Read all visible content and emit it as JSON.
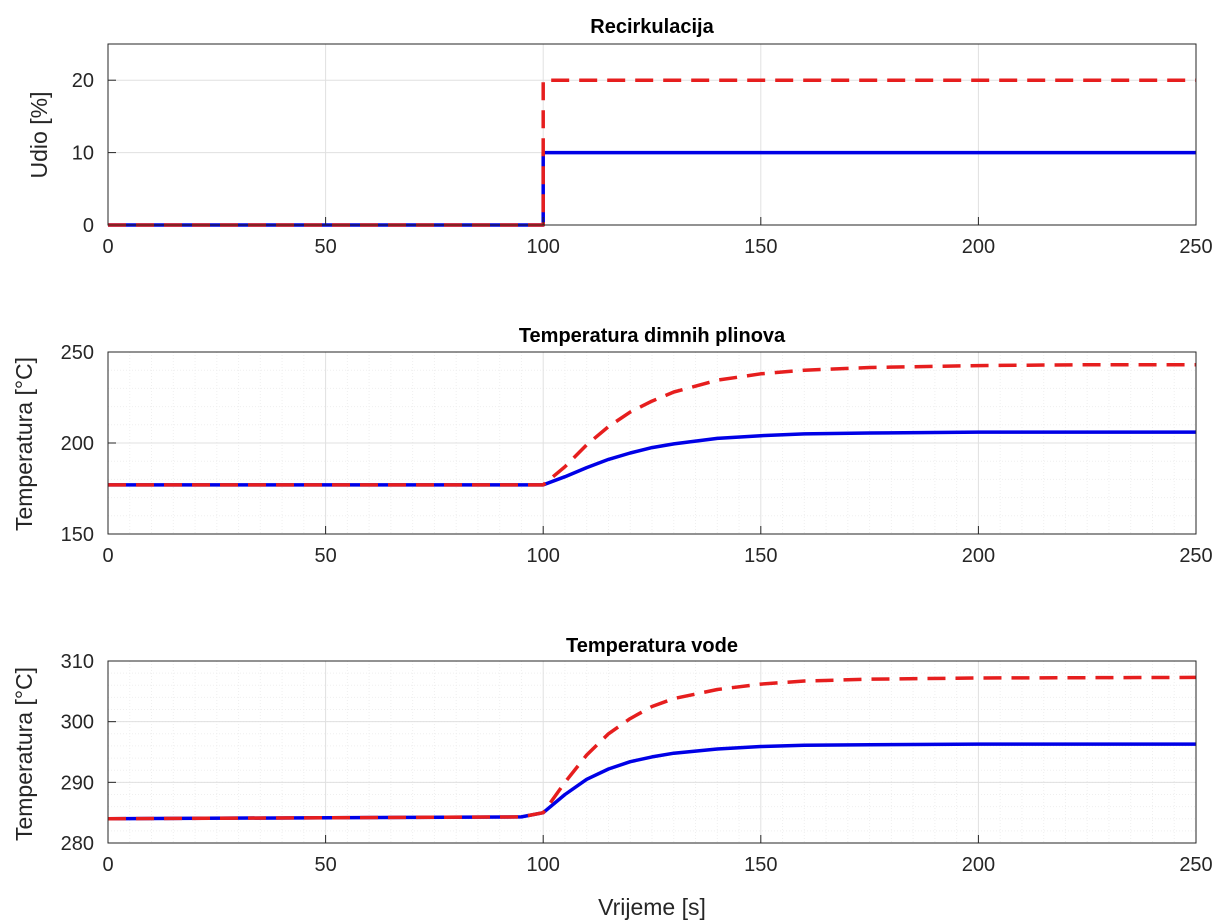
{
  "figure": {
    "xlabel": "Vrijeme [s]"
  },
  "colors": {
    "solid_series": "#0000e6",
    "dashed_series": "#e61e1e",
    "grid": "#e0e0e0",
    "minor_grid": "#efefef",
    "axis": "#262626"
  },
  "chart_data": [
    {
      "type": "line",
      "title": "Recirkulacija",
      "ylabel": "Udio [%]",
      "xlabel": "",
      "xlim": [
        0,
        250
      ],
      "ylim": [
        0,
        25
      ],
      "xticks": [
        0,
        50,
        100,
        150,
        200,
        250
      ],
      "yticks": [
        0,
        10,
        20
      ],
      "grid": "major",
      "series": [
        {
          "style": "solid",
          "color": "#0000e6",
          "x": [
            0,
            100,
            100,
            250
          ],
          "y": [
            0,
            0,
            10,
            10
          ]
        },
        {
          "style": "dashed",
          "color": "#e61e1e",
          "x": [
            0,
            100,
            100,
            250
          ],
          "y": [
            0,
            0,
            20,
            20
          ]
        }
      ]
    },
    {
      "type": "line",
      "title": "Temperatura dimnih plinova",
      "ylabel": "Temperatura [°C]",
      "xlabel": "",
      "xlim": [
        0,
        250
      ],
      "ylim": [
        150,
        250
      ],
      "xticks": [
        0,
        50,
        100,
        150,
        200,
        250
      ],
      "yticks": [
        150,
        200,
        250
      ],
      "grid": "major+minor",
      "series": [
        {
          "style": "solid",
          "color": "#0000e6",
          "x": [
            0,
            100,
            105,
            110,
            115,
            120,
            125,
            130,
            140,
            150,
            160,
            175,
            200,
            225,
            250
          ],
          "y": [
            177,
            177,
            181.5,
            186.5,
            191,
            194.5,
            197.5,
            199.5,
            202.5,
            204,
            205,
            205.5,
            206,
            206,
            206
          ]
        },
        {
          "style": "dashed",
          "color": "#e61e1e",
          "x": [
            0,
            100,
            105,
            110,
            115,
            120,
            125,
            130,
            140,
            150,
            160,
            175,
            200,
            225,
            250
          ],
          "y": [
            177,
            177,
            187,
            199,
            209,
            217,
            223,
            228,
            234.5,
            238,
            240,
            241.5,
            242.5,
            243,
            243
          ]
        }
      ]
    },
    {
      "type": "line",
      "title": "Temperatura vode",
      "ylabel": "Temperatura [°C]",
      "xlabel": "Vrijeme [s]",
      "xlim": [
        0,
        250
      ],
      "ylim": [
        280,
        310
      ],
      "xticks": [
        0,
        50,
        100,
        150,
        200,
        250
      ],
      "yticks": [
        280,
        290,
        300,
        310
      ],
      "grid": "major+minor",
      "series": [
        {
          "style": "solid",
          "color": "#0000e6",
          "x": [
            0,
            95,
            100,
            105,
            110,
            115,
            120,
            125,
            130,
            140,
            150,
            160,
            175,
            200,
            250
          ],
          "y": [
            284,
            284.3,
            285,
            288,
            290.5,
            292.2,
            293.4,
            294.2,
            294.8,
            295.5,
            295.9,
            296.1,
            296.2,
            296.3,
            296.3
          ]
        },
        {
          "style": "dashed",
          "color": "#e61e1e",
          "x": [
            0,
            95,
            100,
            105,
            110,
            115,
            120,
            125,
            130,
            140,
            150,
            160,
            175,
            200,
            250
          ],
          "y": [
            284,
            284.3,
            285,
            290,
            294.5,
            298,
            300.5,
            302.5,
            303.8,
            305.3,
            306.2,
            306.7,
            307,
            307.2,
            307.3
          ]
        }
      ]
    }
  ]
}
